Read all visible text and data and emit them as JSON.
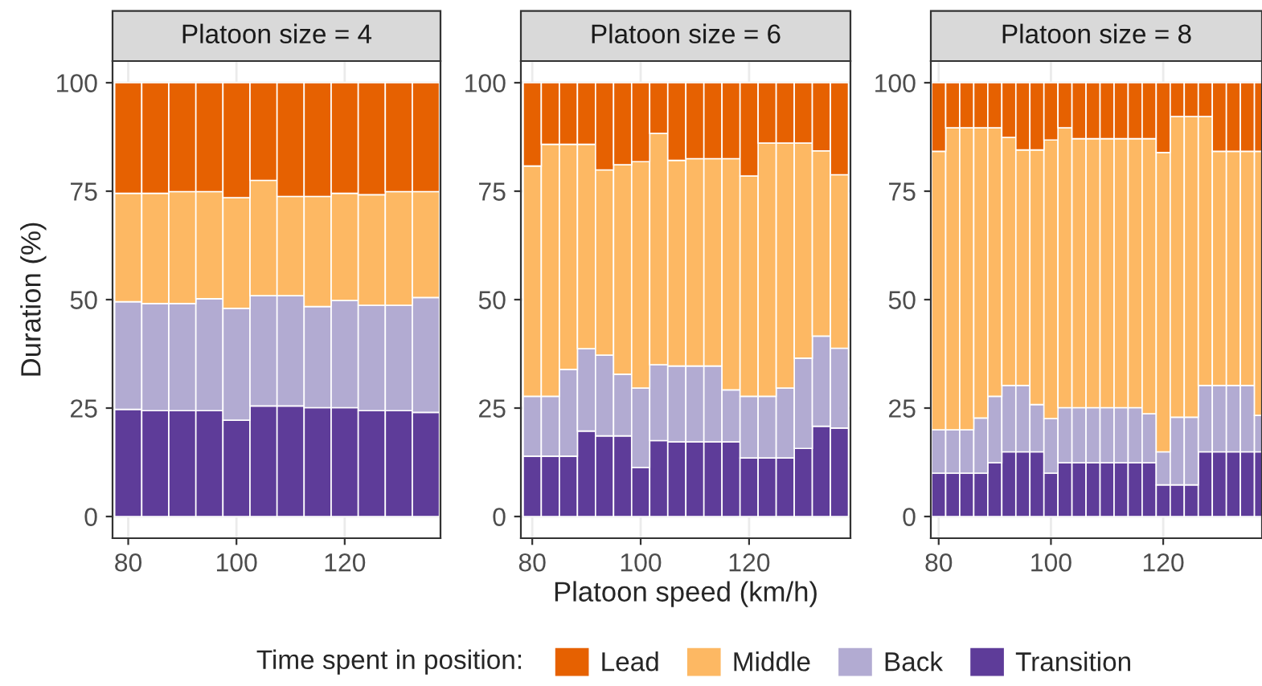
{
  "chart_data": [
    {
      "type": "bar",
      "title": "Platoon size = 4",
      "ylabel": "Duration (%)",
      "legend_title": "Time spent in position:",
      "legend": "bottom",
      "stacked": true,
      "grid": true,
      "x": [
        80,
        85,
        90,
        95,
        100,
        105,
        110,
        115,
        120,
        125,
        130,
        135
      ],
      "xlim": [
        77.1,
        137.7
      ],
      "xticks": [
        80,
        100,
        120
      ],
      "ylim": [
        -5,
        105
      ],
      "yticks": [
        0,
        25,
        50,
        75,
        100
      ],
      "series": [
        {
          "name": "Transition",
          "color": "#5e3c99",
          "values": [
            24.7,
            24.4,
            24.4,
            24.4,
            22.2,
            25.5,
            25.5,
            25.1,
            25.1,
            24.4,
            24.4,
            24.0
          ]
        },
        {
          "name": "Back",
          "color": "#b2abd2",
          "values": [
            24.8,
            24.7,
            24.7,
            25.8,
            25.8,
            25.4,
            25.4,
            23.3,
            24.7,
            24.3,
            24.3,
            26.5
          ]
        },
        {
          "name": "Middle",
          "color": "#fdb863",
          "values": [
            25.0,
            25.4,
            25.8,
            24.7,
            25.5,
            26.6,
            22.9,
            25.4,
            24.7,
            25.5,
            26.2,
            24.4
          ]
        },
        {
          "name": "Lead",
          "color": "#e66101",
          "values": [
            25.5,
            25.5,
            25.1,
            25.1,
            26.5,
            22.5,
            26.2,
            26.2,
            25.5,
            25.8,
            25.1,
            25.1
          ]
        }
      ]
    },
    {
      "type": "bar",
      "title": "Platoon size = 6",
      "xlabel": "Platoon speed (km/h)",
      "stacked": true,
      "grid": true,
      "x": [
        80,
        83.33,
        86.67,
        90,
        93.33,
        96.67,
        100,
        103.33,
        106.67,
        110,
        113.33,
        116.67,
        120,
        123.33,
        126.67,
        130,
        133.33,
        136.67
      ],
      "xlim": [
        77.9,
        138.7
      ],
      "xticks": [
        80,
        100,
        120
      ],
      "ylim": [
        -5,
        105
      ],
      "yticks": [
        0,
        25,
        50,
        75,
        100
      ],
      "series": [
        {
          "color": "#5e3c99",
          "values": [
            13.9,
            13.9,
            13.9,
            19.7,
            18.6,
            18.6,
            11.3,
            17.5,
            17.2,
            17.2,
            17.2,
            17.2,
            13.5,
            13.5,
            13.5,
            15.7,
            20.8,
            20.4
          ]
        },
        {
          "color": "#b2abd2",
          "values": [
            13.8,
            13.8,
            20.0,
            19.0,
            18.6,
            14.2,
            18.3,
            17.5,
            17.5,
            17.5,
            17.5,
            12.0,
            14.2,
            14.2,
            16.1,
            20.8,
            20.8,
            18.4
          ]
        },
        {
          "color": "#fdb863",
          "values": [
            53.1,
            58.1,
            51.9,
            47.1,
            42.7,
            48.3,
            52.2,
            53.3,
            47.4,
            47.8,
            47.8,
            53.3,
            50.8,
            58.4,
            56.5,
            49.6,
            42.7,
            40.0
          ]
        },
        {
          "color": "#e66101",
          "values": [
            19.2,
            14.2,
            14.2,
            14.2,
            20.1,
            18.9,
            18.2,
            11.7,
            17.9,
            17.5,
            17.5,
            17.5,
            21.5,
            13.9,
            13.9,
            13.9,
            15.7,
            21.2
          ]
        }
      ]
    },
    {
      "type": "bar",
      "title": "Platoon size = 8",
      "stacked": true,
      "grid": true,
      "x": [
        80,
        82.5,
        85,
        87.5,
        90,
        92.5,
        95,
        97.5,
        100,
        102.5,
        105,
        107.5,
        110,
        112.5,
        115,
        117.5,
        120,
        122.5,
        125,
        127.5,
        130,
        132.5,
        135,
        137.5
      ],
      "xlim": [
        78.6,
        137.6
      ],
      "xticks": [
        80,
        100,
        120
      ],
      "ylim": [
        -5,
        105
      ],
      "yticks": [
        0,
        25,
        50,
        75,
        100
      ],
      "series": [
        {
          "color": "#5e3c99",
          "values": [
            10.0,
            10.0,
            10.0,
            10.0,
            12.4,
            14.9,
            14.9,
            14.9,
            10.0,
            12.4,
            12.4,
            12.4,
            12.4,
            12.4,
            12.4,
            12.4,
            7.3,
            7.3,
            7.3,
            14.9,
            14.9,
            14.9,
            14.9,
            14.9
          ]
        },
        {
          "color": "#b2abd2",
          "values": [
            10.0,
            10.0,
            10.0,
            12.7,
            15.3,
            15.3,
            15.3,
            10.9,
            12.6,
            12.7,
            12.7,
            12.7,
            12.7,
            12.7,
            12.7,
            11.3,
            7.6,
            15.6,
            15.6,
            15.3,
            15.3,
            15.3,
            15.3,
            8.4
          ]
        },
        {
          "color": "#fdb863",
          "values": [
            64.2,
            69.6,
            69.6,
            66.9,
            61.9,
            57.2,
            54.3,
            58.7,
            64.2,
            64.5,
            62.0,
            62.0,
            62.0,
            62.0,
            62.0,
            63.4,
            69.0,
            69.3,
            69.3,
            62.0,
            54.0,
            54.0,
            54.0,
            60.9
          ]
        },
        {
          "color": "#e66101",
          "values": [
            15.8,
            10.4,
            10.4,
            10.4,
            10.4,
            12.6,
            15.5,
            15.5,
            13.2,
            10.4,
            12.9,
            12.9,
            12.9,
            12.9,
            12.9,
            12.9,
            16.1,
            7.8,
            7.8,
            7.8,
            15.8,
            15.8,
            15.8,
            15.8
          ]
        }
      ]
    }
  ]
}
